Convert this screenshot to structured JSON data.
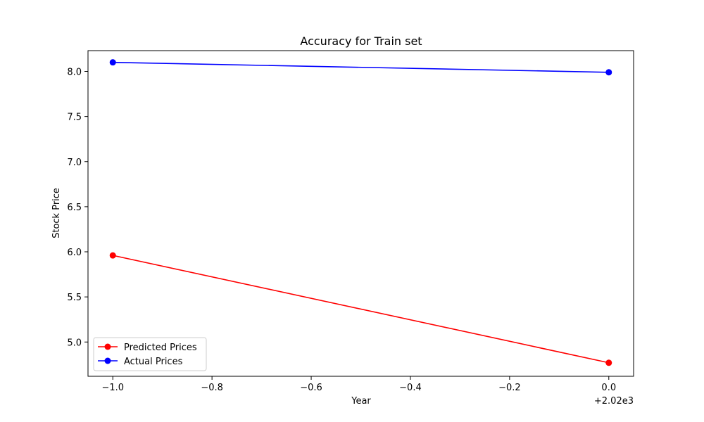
{
  "chart_data": {
    "type": "line",
    "title": "Accuracy for Train set",
    "xlabel": "Year",
    "ylabel": "Stock Price",
    "x_offset_label": "+2.02e3",
    "xlim": [
      -1.05,
      0.05
    ],
    "ylim": [
      4.62,
      8.23
    ],
    "x_ticks": [
      -1.0,
      -0.8,
      -0.6,
      -0.4,
      -0.2,
      0.0
    ],
    "x_tick_labels": [
      "−1.0",
      "−0.8",
      "−0.6",
      "−0.4",
      "−0.2",
      "0.0"
    ],
    "y_ticks": [
      5.0,
      5.5,
      6.0,
      6.5,
      7.0,
      7.5,
      8.0
    ],
    "y_tick_labels": [
      "5.0",
      "5.5",
      "6.0",
      "6.5",
      "7.0",
      "7.5",
      "8.0"
    ],
    "grid": false,
    "legend_position": "lower-left",
    "x": [
      -1.0,
      0.0
    ],
    "series": [
      {
        "name": "Predicted Prices",
        "color": "#ff0000",
        "values": [
          5.96,
          4.77
        ]
      },
      {
        "name": "Actual Prices",
        "color": "#0000ff",
        "values": [
          8.1,
          7.99
        ]
      }
    ]
  }
}
